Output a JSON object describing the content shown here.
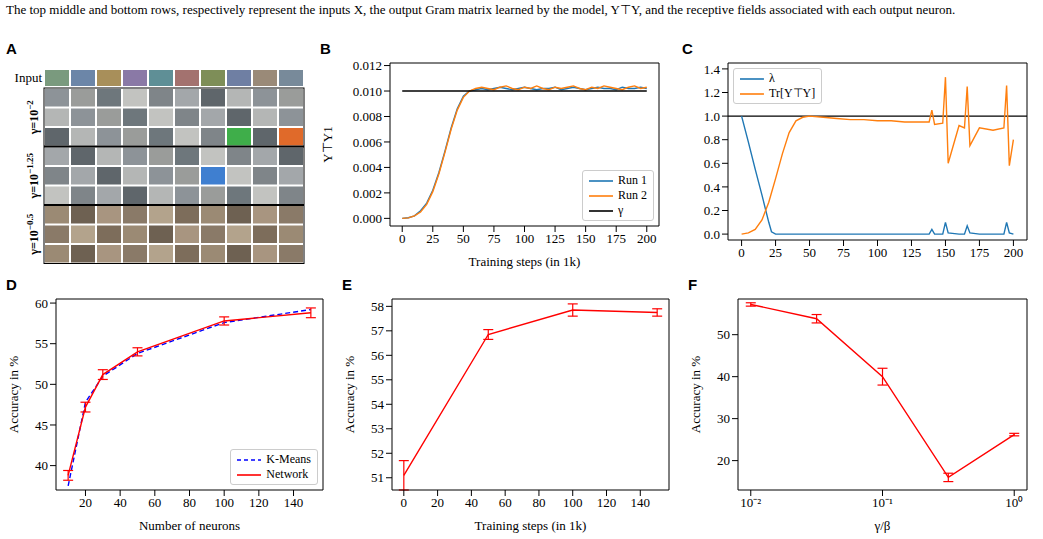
{
  "caption": "The top middle and bottom rows, respectively represent the inputs X, the output Gram matrix learned by the model, Y⊤Y, and the receptive fields associated with each output neuron.",
  "panel_A": {
    "letter": "A",
    "input_label": "Input",
    "rows": [
      {
        "base": "γ=10",
        "exponent": "−2"
      },
      {
        "base": "γ=10",
        "exponent": "−1.25"
      },
      {
        "base": "γ=10",
        "exponent": "−0.5"
      }
    ]
  },
  "chart_data": [
    {
      "letter": "B",
      "type": "line",
      "x_label": "Training steps (in 1k)",
      "y_label": "Y⊤Y1",
      "x": [
        0,
        5,
        10,
        15,
        20,
        25,
        30,
        35,
        40,
        45,
        50,
        55,
        60,
        65,
        70,
        75,
        80,
        85,
        90,
        95,
        100,
        105,
        110,
        115,
        120,
        125,
        130,
        135,
        140,
        145,
        150,
        155,
        160,
        165,
        170,
        175,
        180,
        185,
        190,
        195,
        200
      ],
      "xlim": [
        -10,
        210
      ],
      "xticks": [
        0,
        25,
        50,
        75,
        100,
        125,
        150,
        175,
        200
      ],
      "ylim": [
        -0.0006,
        0.0122
      ],
      "yticks": [
        {
          "value": 0,
          "label": "0.000"
        },
        {
          "value": 0.002,
          "label": "0.002"
        },
        {
          "value": 0.004,
          "label": "0.004"
        },
        {
          "value": 0.006,
          "label": "0.006"
        },
        {
          "value": 0.008,
          "label": "0.008"
        },
        {
          "value": 0.01,
          "label": "0.010"
        },
        {
          "value": 0.012,
          "label": "0.012"
        }
      ],
      "legend": "lower right",
      "series": [
        {
          "name": "Run 1",
          "color": "#1f77b4",
          "values": [
            0,
            5e-05,
            0.0002,
            0.0006,
            0.0012,
            0.0022,
            0.0036,
            0.0053,
            0.0071,
            0.0086,
            0.0096,
            0.01,
            0.0101,
            0.0102,
            0.0101,
            0.0102,
            0.0103,
            0.0102,
            0.0101,
            0.0102,
            0.0103,
            0.0102,
            0.0101,
            0.0102,
            0.0102,
            0.0103,
            0.0101,
            0.0102,
            0.0103,
            0.0102,
            0.0101,
            0.0102,
            0.0103,
            0.0102,
            0.0102,
            0.0101,
            0.0103,
            0.0102,
            0.0102,
            0.0103,
            0.0102
          ]
        },
        {
          "name": "Run 2",
          "color": "#ff7f0e",
          "values": [
            0,
            4e-05,
            0.0002,
            0.0005,
            0.0011,
            0.0021,
            0.0035,
            0.0052,
            0.007,
            0.0085,
            0.0095,
            0.01,
            0.0102,
            0.0103,
            0.0102,
            0.0101,
            0.0103,
            0.0104,
            0.0102,
            0.0101,
            0.0103,
            0.0102,
            0.0104,
            0.0102,
            0.0101,
            0.0103,
            0.0102,
            0.0103,
            0.0104,
            0.0102,
            0.0101,
            0.0103,
            0.0102,
            0.0104,
            0.0103,
            0.0102,
            0.0101,
            0.0103,
            0.0104,
            0.0102,
            0.0103
          ]
        },
        {
          "name": "γ",
          "color": "#000000",
          "values": [
            0.01,
            0.01,
            0.01,
            0.01,
            0.01,
            0.01,
            0.01,
            0.01,
            0.01,
            0.01,
            0.01,
            0.01,
            0.01,
            0.01,
            0.01,
            0.01,
            0.01,
            0.01,
            0.01,
            0.01,
            0.01,
            0.01,
            0.01,
            0.01,
            0.01,
            0.01,
            0.01,
            0.01,
            0.01,
            0.01,
            0.01,
            0.01,
            0.01,
            0.01,
            0.01,
            0.01,
            0.01,
            0.01,
            0.01,
            0.01,
            0.01
          ]
        }
      ]
    },
    {
      "letter": "C",
      "type": "line",
      "x": [
        0,
        5,
        10,
        15,
        20,
        22,
        25,
        30,
        35,
        40,
        45,
        50,
        60,
        70,
        80,
        90,
        100,
        110,
        120,
        130,
        138,
        140,
        142,
        148,
        150,
        152,
        160,
        164,
        166,
        168,
        175,
        185,
        193,
        195,
        197,
        200
      ],
      "xlim": [
        -10,
        210
      ],
      "xticks": [
        0,
        25,
        50,
        75,
        100,
        125,
        150,
        175,
        200
      ],
      "ylim": [
        -0.05,
        1.45
      ],
      "yticks": [
        {
          "value": 0,
          "label": "0.0"
        },
        {
          "value": 0.2,
          "label": "0.2"
        },
        {
          "value": 0.4,
          "label": "0.4"
        },
        {
          "value": 0.6,
          "label": "0.6"
        },
        {
          "value": 0.8,
          "label": "0.8"
        },
        {
          "value": 1,
          "label": "1.0"
        },
        {
          "value": 1.2,
          "label": "1.2"
        },
        {
          "value": 1.4,
          "label": "1.4"
        }
      ],
      "reference_line": 1,
      "legend": "upper left",
      "series": [
        {
          "name": "λ",
          "color": "#1f77b4",
          "values": [
            1.0,
            0.78,
            0.55,
            0.33,
            0.1,
            0.02,
            0,
            0,
            0,
            0,
            0,
            0,
            0,
            0,
            0,
            0,
            0,
            0,
            0,
            0,
            0,
            0.04,
            0,
            0,
            0.1,
            0.01,
            0,
            0,
            0.07,
            0.01,
            0,
            0,
            0,
            0.1,
            0.01,
            0
          ]
        },
        {
          "name": "Tr[Y⊤Y]",
          "color": "#ff7f0e",
          "values": [
            0,
            0.01,
            0.04,
            0.12,
            0.27,
            0.35,
            0.47,
            0.68,
            0.86,
            0.96,
            0.99,
            1.0,
            0.99,
            0.98,
            0.97,
            0.97,
            0.96,
            0.96,
            0.95,
            0.95,
            0.95,
            1.05,
            0.93,
            0.94,
            1.33,
            0.6,
            0.92,
            0.9,
            1.25,
            0.75,
            0.9,
            0.88,
            0.9,
            1.26,
            0.58,
            0.8
          ]
        }
      ]
    },
    {
      "letter": "D",
      "type": "line",
      "x_label": "Number of neurons",
      "y_label": "Accuracy in %",
      "x": [
        10,
        20,
        30,
        50,
        100,
        150
      ],
      "xlim": [
        3,
        157
      ],
      "xticks": [
        20,
        40,
        60,
        80,
        100,
        120,
        140
      ],
      "ylim": [
        37,
        60.5
      ],
      "yticks": [
        40,
        45,
        50,
        55,
        60
      ],
      "legend": "lower right",
      "series": [
        {
          "name": "K-Means",
          "color": "#0000ff",
          "line_style": "dashed",
          "values": [
            37.5,
            47.8,
            51.0,
            53.8,
            57.6,
            59.2
          ]
        },
        {
          "name": "Network",
          "color": "#ff0000",
          "line_style": "solid",
          "values": [
            38.8,
            47.2,
            51.2,
            54.0,
            57.8,
            58.8
          ],
          "errors": [
            0.6,
            0.6,
            0.6,
            0.5,
            0.5,
            0.6
          ]
        }
      ]
    },
    {
      "letter": "E",
      "type": "line",
      "x_label": "Training steps (in 1k)",
      "y_label": "Accuracy in %",
      "x": [
        0,
        50,
        100,
        150
      ],
      "xlim": [
        -7,
        157
      ],
      "xticks": [
        0,
        20,
        40,
        60,
        80,
        100,
        120,
        140
      ],
      "ylim": [
        50.5,
        58.3
      ],
      "yticks": [
        51,
        52,
        53,
        54,
        55,
        56,
        57,
        58
      ],
      "series": [
        {
          "color": "#ff0000",
          "values": [
            51.1,
            56.85,
            57.85,
            57.75
          ],
          "errors": [
            0.6,
            0.2,
            0.25,
            0.15
          ]
        }
      ]
    },
    {
      "letter": "F",
      "type": "line",
      "x_label": "γ/β",
      "y_label": "Accuracy in %",
      "log": "x",
      "x": [
        0.01,
        0.0316,
        0.1,
        0.316,
        1
      ],
      "xlim": [
        0.008,
        1.25
      ],
      "xticks": [
        {
          "value": 0.01,
          "label": "10⁻²"
        },
        {
          "value": 0.1,
          "label": "10⁻¹"
        },
        {
          "value": 1,
          "label": "10⁰"
        }
      ],
      "ylim": [
        13,
        58.5
      ],
      "yticks": [
        20,
        30,
        40,
        50
      ],
      "series": [
        {
          "color": "#ff0000",
          "values": [
            57.2,
            53.8,
            40.0,
            16.0,
            26.2
          ],
          "errors": [
            0.4,
            1.0,
            2.0,
            1.0,
            0.3
          ]
        }
      ]
    }
  ]
}
